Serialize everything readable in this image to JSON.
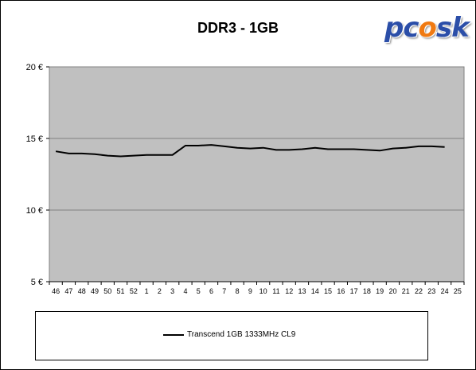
{
  "colors": {
    "plot_background": "#c0c0c0",
    "gridline": "#808080",
    "series_line": "#000000",
    "logo_blue": "#2b4ea8",
    "logo_orange": "#f07a12"
  },
  "logo": {
    "text_before": "pc",
    "flame_char": "o",
    "text_after": "sk"
  },
  "chart_data": {
    "type": "line",
    "title": "DDR3 - 1GB",
    "xlabel": "",
    "ylabel": "",
    "categories": [
      "46",
      "47",
      "48",
      "49",
      "50",
      "51",
      "52",
      "1",
      "2",
      "3",
      "4",
      "5",
      "6",
      "7",
      "8",
      "9",
      "10",
      "11",
      "12",
      "13",
      "14",
      "15",
      "16",
      "17",
      "18",
      "19",
      "20",
      "21",
      "22",
      "23",
      "24",
      "25"
    ],
    "ylim": [
      5,
      20
    ],
    "y_ticks": [
      20,
      15,
      10,
      5
    ],
    "y_tick_labels": [
      "20 €",
      "15 €",
      "10 €",
      "5 €"
    ],
    "grid": true,
    "legend_position": "bottom",
    "series": [
      {
        "name": "Transcend 1GB 1333MHz CL9",
        "values": [
          14.1,
          13.95,
          13.95,
          13.9,
          13.8,
          13.75,
          13.8,
          13.85,
          13.85,
          13.85,
          14.5,
          14.5,
          14.55,
          14.45,
          14.35,
          14.3,
          14.35,
          14.2,
          14.2,
          14.25,
          14.35,
          14.25,
          14.25,
          14.25,
          14.2,
          14.15,
          14.3,
          14.35,
          14.45,
          14.45,
          14.4,
          null
        ]
      }
    ]
  }
}
